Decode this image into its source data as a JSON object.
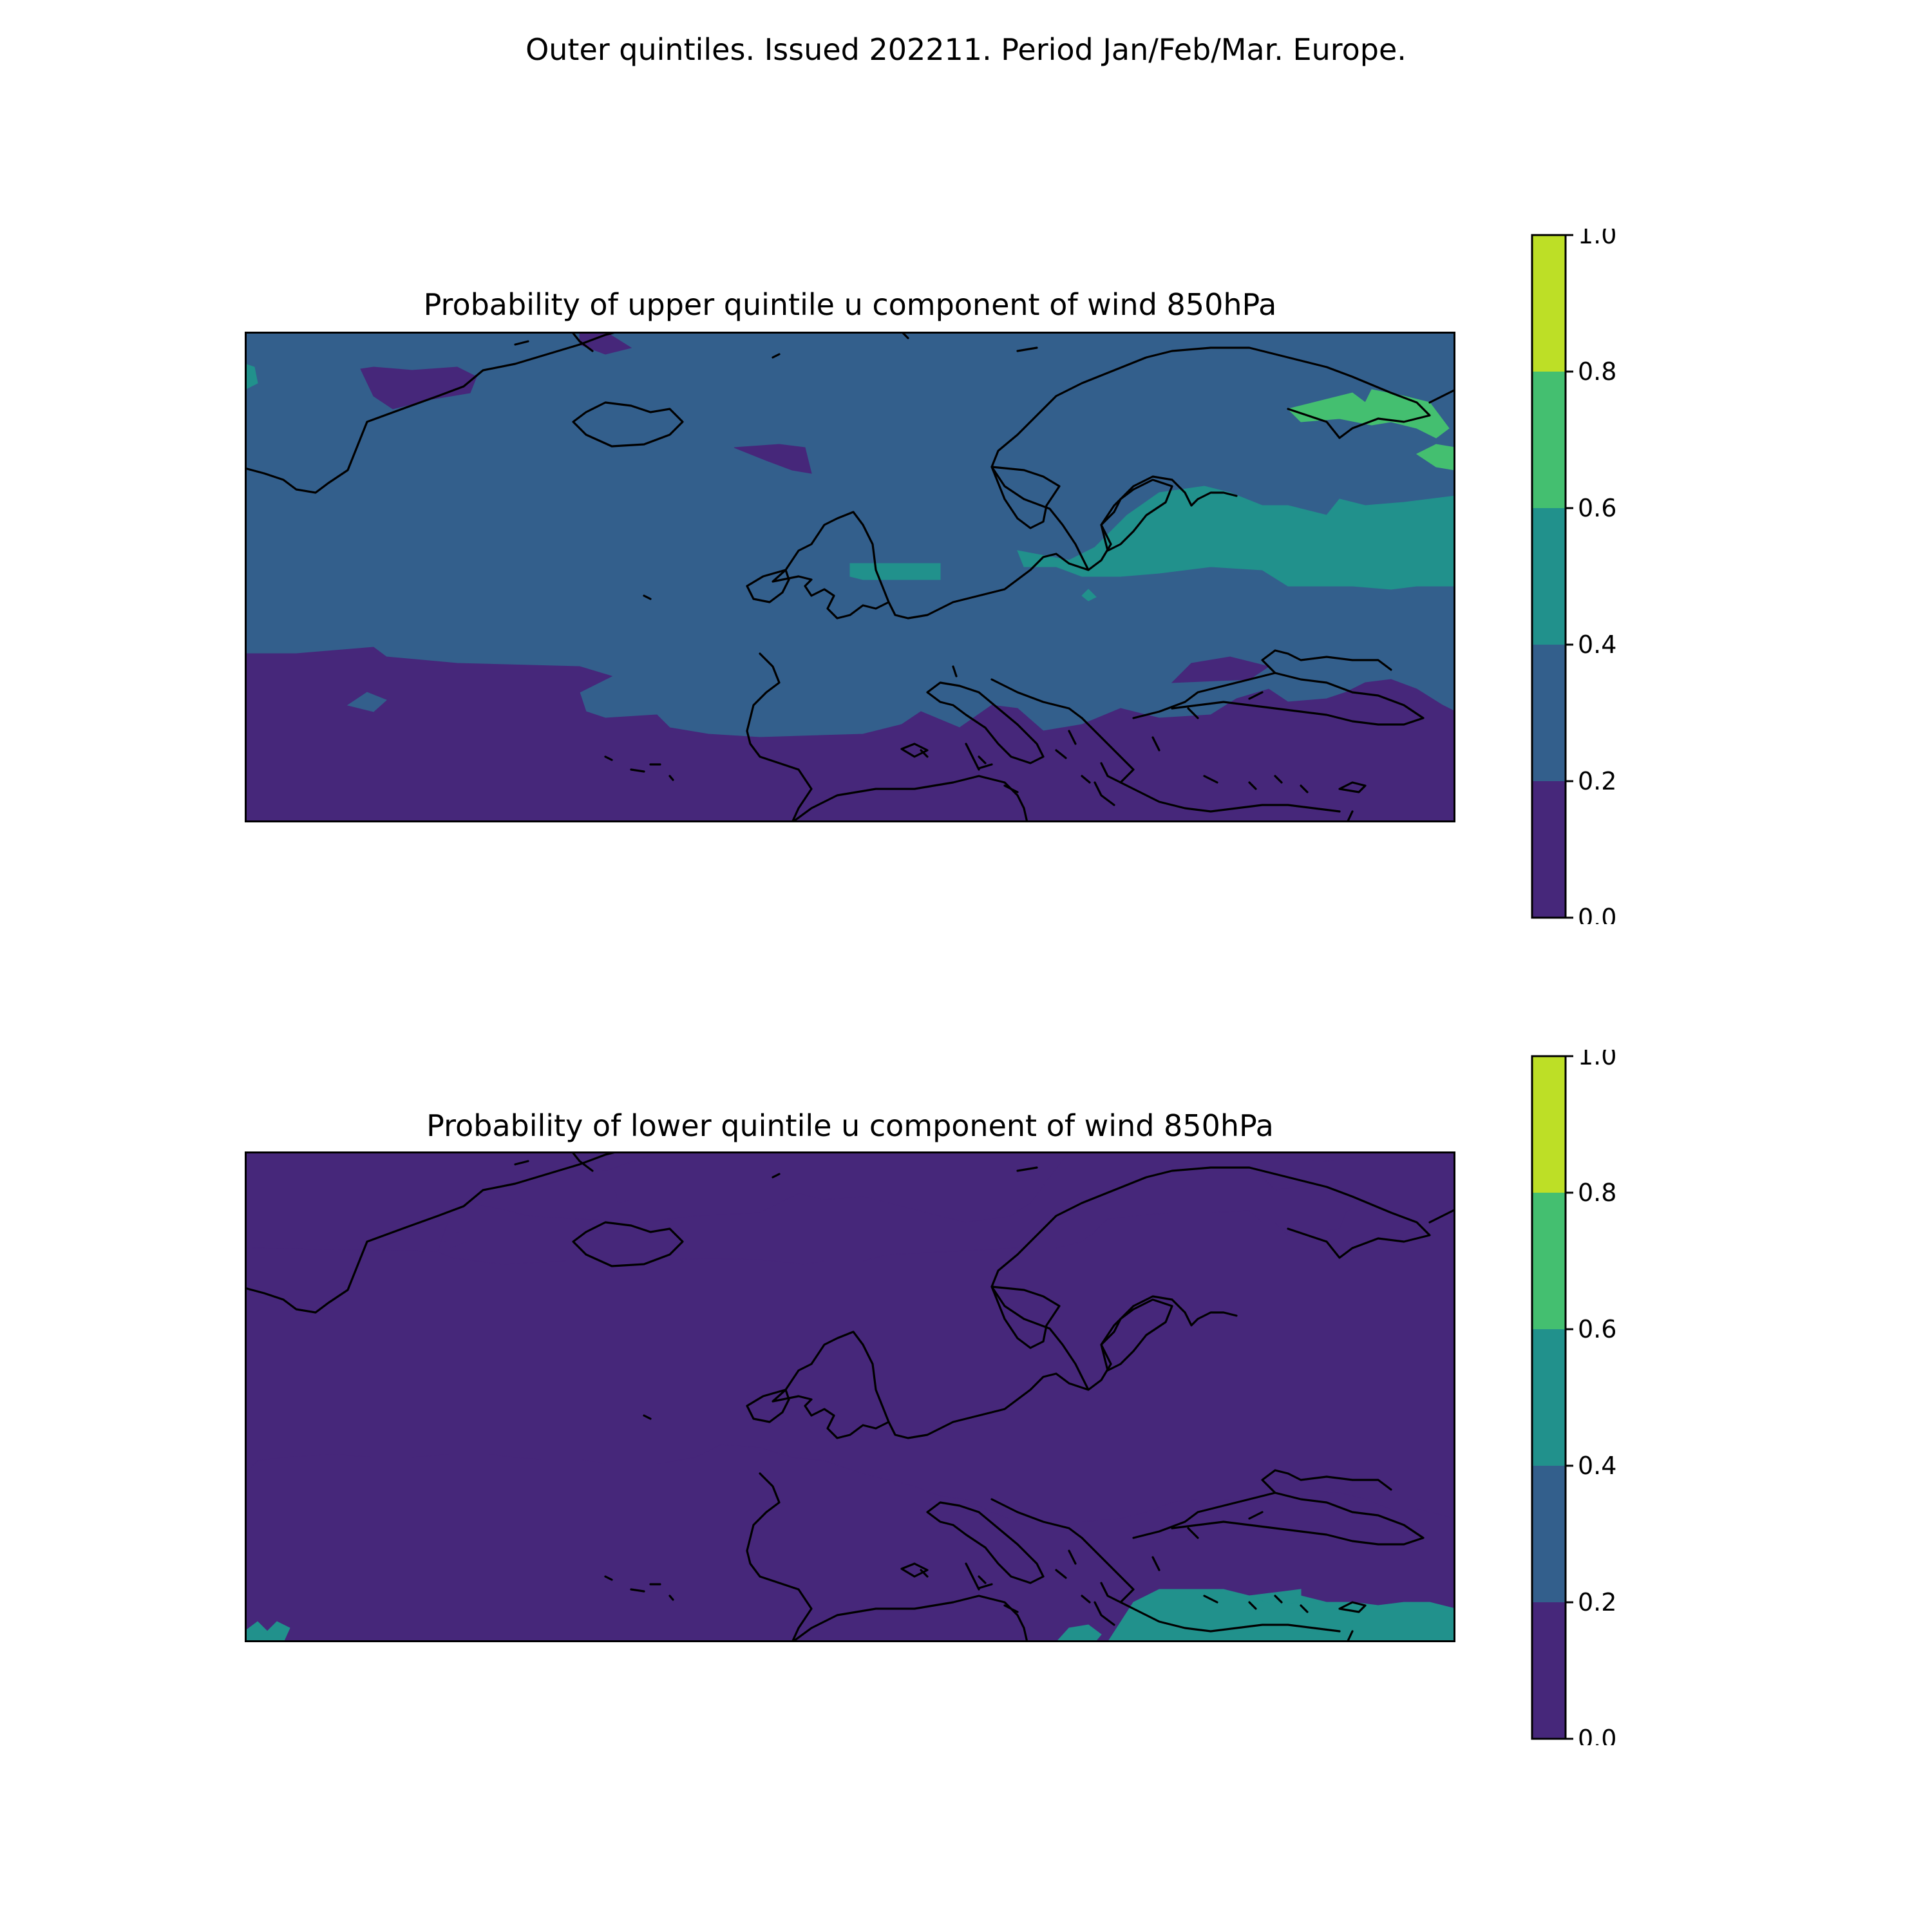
{
  "figure": {
    "title": "Outer quintiles. Issued 202211. Period Jan/Feb/Mar. Europe."
  },
  "palette": {
    "levels": [
      0.0,
      0.2,
      0.4,
      0.6,
      0.8,
      1.0
    ],
    "colors": [
      "#46277a",
      "#335f8c",
      "#21918c",
      "#44bf70",
      "#bddf26"
    ]
  },
  "panels": [
    {
      "title": "Probability of upper quintile u component of wind 850hPa",
      "background_class": 1,
      "colorbar": {
        "tick_labels": [
          "0.0",
          "0.2",
          "0.4",
          "0.6",
          "0.8",
          "1.0"
        ]
      }
    },
    {
      "title": "Probability of lower quintile u component of wind 850hPa",
      "background_class": 0,
      "colorbar": {
        "tick_labels": [
          "0.0",
          "0.2",
          "0.4",
          "0.6",
          "0.8",
          "1.0"
        ]
      }
    }
  ]
}
